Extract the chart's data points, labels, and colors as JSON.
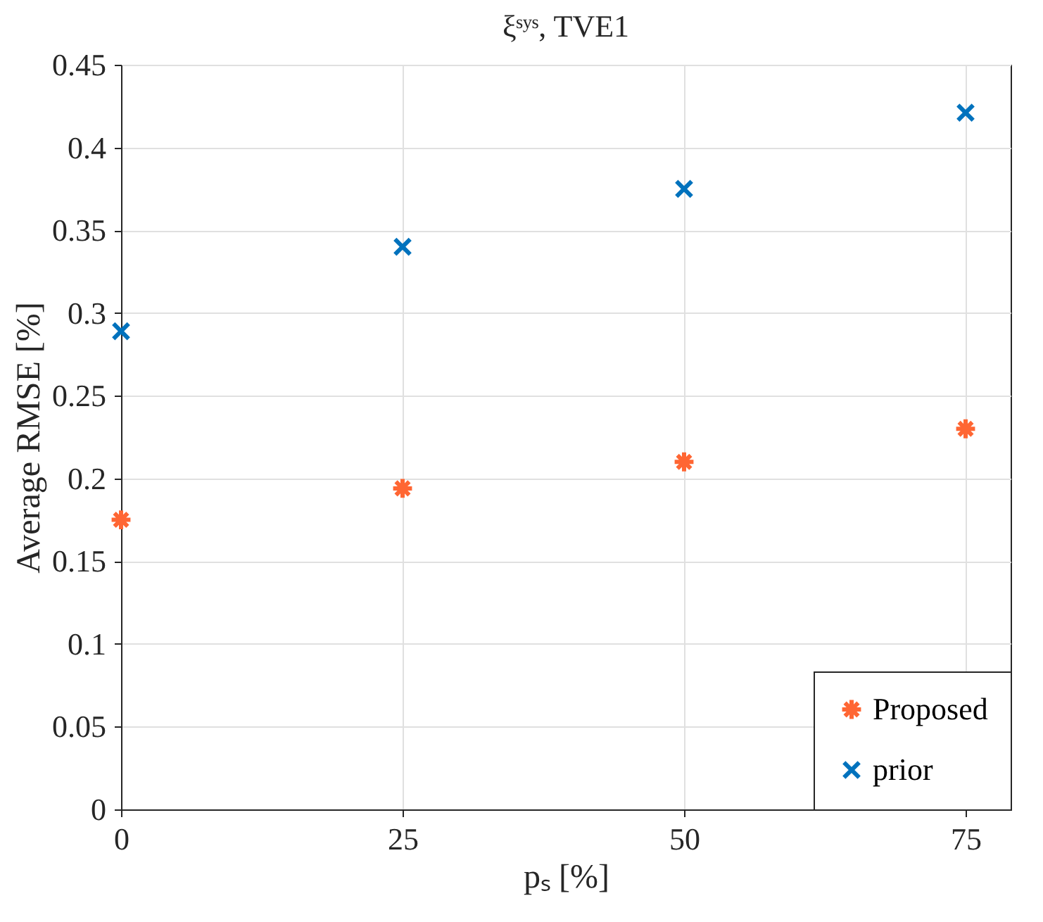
{
  "chart_data": {
    "type": "scatter",
    "title": "ξˢʸˢ, TVE1",
    "xlabel": "pₛ [%]",
    "ylabel": "Average RMSE [%]",
    "x": [
      0,
      25,
      50,
      75
    ],
    "series": [
      {
        "name": "Proposed",
        "color": "#ff6633",
        "values": [
          0.175,
          0.194,
          0.21,
          0.23
        ]
      },
      {
        "name": "prior",
        "color": "#0072bd",
        "marker": "cross",
        "values": [
          0.289,
          0.34,
          0.375,
          0.421
        ]
      }
    ],
    "xlim": [
      0,
      79
    ],
    "xticks": [
      0,
      25,
      50,
      75
    ],
    "ylim": [
      0,
      0.45
    ],
    "yticks": [
      0,
      0.05,
      0.1,
      0.15,
      0.2,
      0.25,
      0.3,
      0.35,
      0.4,
      0.45
    ],
    "grid": true,
    "legend": "bottom right"
  }
}
